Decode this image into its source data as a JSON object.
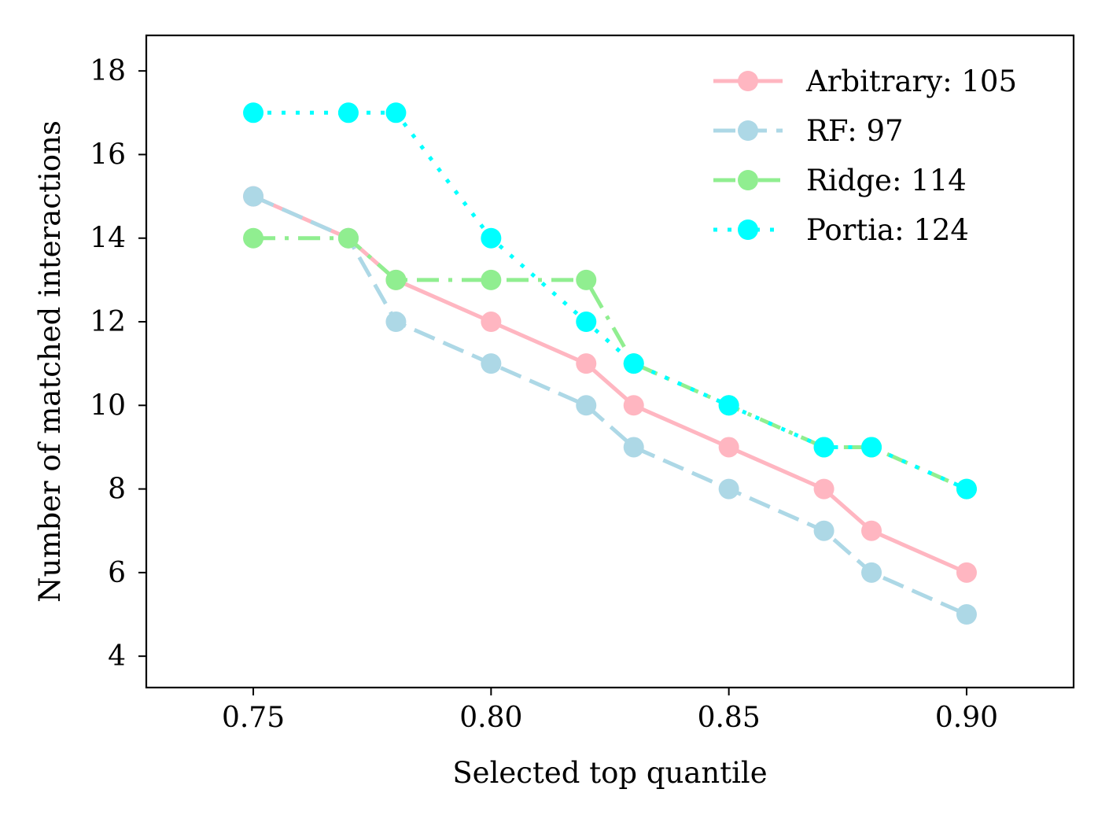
{
  "chart_data": {
    "type": "line",
    "title": "",
    "xlabel": "Selected top quantile",
    "ylabel": "Number of matched interactions",
    "xlim": [
      0.7275,
      0.9225
    ],
    "ylim": [
      3.25,
      18.85
    ],
    "xticks": [
      0.75,
      0.8,
      0.85,
      0.9
    ],
    "xtick_labels": [
      "0.75",
      "0.80",
      "0.85",
      "0.90"
    ],
    "yticks": [
      4,
      6,
      8,
      10,
      12,
      14,
      16,
      18
    ],
    "ytick_labels": [
      "4",
      "6",
      "8",
      "10",
      "12",
      "14",
      "16",
      "18"
    ],
    "grid": false,
    "legend_position": "top-right",
    "x": [
      0.75,
      0.77,
      0.78,
      0.8,
      0.82,
      0.83,
      0.85,
      0.87,
      0.88,
      0.9
    ],
    "series": [
      {
        "name": "Arbitrary: 105",
        "color": "#ffb6c1",
        "linestyle": "solid",
        "values": [
          15,
          14,
          13,
          12,
          11,
          10,
          9,
          8,
          7,
          6
        ]
      },
      {
        "name": "RF: 97",
        "color": "#add8e6",
        "linestyle": "dashed",
        "values": [
          15,
          14,
          12,
          11,
          10,
          9,
          8,
          7,
          6,
          5
        ]
      },
      {
        "name": "Ridge: 114",
        "color": "#90ee90",
        "linestyle": "dashdot",
        "values": [
          14,
          14,
          13,
          13,
          13,
          11,
          10,
          9,
          9,
          8
        ]
      },
      {
        "name": "Portia: 124",
        "color": "#00ffff",
        "linestyle": "dotted",
        "values": [
          17,
          17,
          17,
          14,
          12,
          11,
          10,
          9,
          9,
          8
        ]
      }
    ]
  }
}
